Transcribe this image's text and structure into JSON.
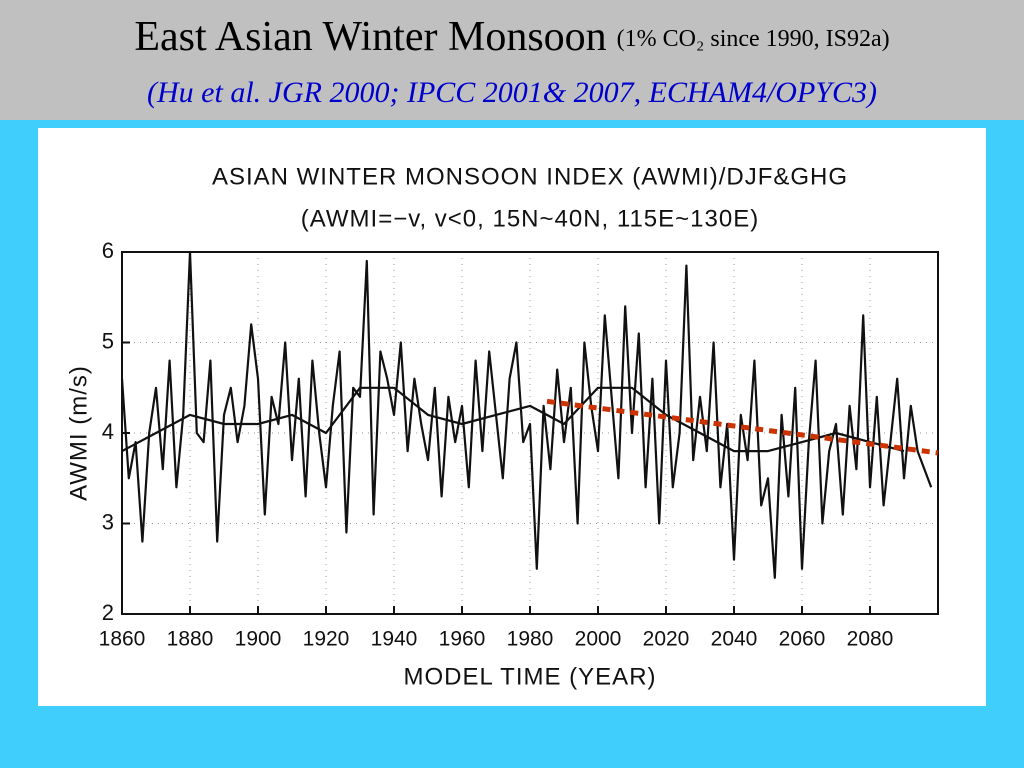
{
  "header": {
    "title": "East Asian Winter Monsoon",
    "title_note": "(1% CO₂ since 1990, IS92a)",
    "subtitle": "(Hu et al. JGR 2000; IPCC 2001& 2007, ECHAM4/OPYC3)"
  },
  "chart_data": {
    "type": "line",
    "title": "ASIAN WINTER MONSOON INDEX (AWMI)/DJF&GHG",
    "subtitle": "(AWMI=−v, v<0, 15N~40N, 115E~130E)",
    "x_label": "MODEL TIME (YEAR)",
    "y_label": "AWMI (m/s)",
    "xlim": [
      1860,
      2100
    ],
    "xticks": [
      1860,
      1880,
      1900,
      1920,
      1940,
      1960,
      1980,
      2000,
      2020,
      2040,
      2060,
      2080
    ],
    "ylim": [
      2,
      6
    ],
    "yticks": [
      2,
      3,
      4,
      5,
      6
    ],
    "grid": true,
    "series": [
      {
        "color": "#111111",
        "x": [
          1860,
          1862,
          1864,
          1866,
          1868,
          1870,
          1872,
          1874,
          1876,
          1878,
          1880,
          1882,
          1884,
          1886,
          1888,
          1890,
          1892,
          1894,
          1896,
          1898,
          1900,
          1902,
          1904,
          1906,
          1908,
          1910,
          1912,
          1914,
          1916,
          1918,
          1920,
          1922,
          1924,
          1926,
          1928,
          1930,
          1932,
          1934,
          1936,
          1938,
          1940,
          1942,
          1944,
          1946,
          1948,
          1950,
          1952,
          1954,
          1956,
          1958,
          1960,
          1962,
          1964,
          1966,
          1968,
          1970,
          1972,
          1974,
          1976,
          1978,
          1980,
          1982,
          1984,
          1986,
          1988,
          1990,
          1992,
          1994,
          1996,
          1998,
          2000,
          2002,
          2004,
          2006,
          2008,
          2010,
          2012,
          2014,
          2016,
          2018,
          2020,
          2022,
          2024,
          2026,
          2028,
          2030,
          2032,
          2034,
          2036,
          2038,
          2040,
          2042,
          2044,
          2046,
          2048,
          2050,
          2052,
          2054,
          2056,
          2058,
          2060,
          2062,
          2064,
          2066,
          2068,
          2070,
          2072,
          2074,
          2076,
          2078,
          2080,
          2082,
          2084,
          2086,
          2088,
          2090,
          2092,
          2094,
          2096,
          2098
        ],
        "values": [
          4.6,
          3.5,
          3.9,
          2.8,
          4.0,
          4.5,
          3.6,
          4.8,
          3.4,
          4.2,
          6.0,
          4.0,
          3.9,
          4.8,
          2.8,
          4.2,
          4.5,
          3.9,
          4.3,
          5.2,
          4.6,
          3.1,
          4.4,
          4.1,
          5.0,
          3.7,
          4.6,
          3.3,
          4.8,
          4.0,
          3.4,
          4.3,
          4.9,
          2.9,
          4.5,
          4.4,
          5.9,
          3.1,
          4.9,
          4.6,
          4.2,
          5.0,
          3.8,
          4.6,
          4.1,
          3.7,
          4.5,
          3.3,
          4.4,
          3.9,
          4.3,
          3.4,
          4.8,
          3.8,
          4.9,
          4.2,
          3.5,
          4.6,
          5.0,
          3.9,
          4.1,
          2.5,
          4.3,
          3.6,
          4.7,
          3.9,
          4.5,
          3.0,
          5.0,
          4.3,
          3.8,
          5.3,
          4.4,
          3.5,
          5.4,
          4.0,
          5.1,
          3.4,
          4.6,
          3.0,
          4.8,
          3.4,
          4.0,
          5.85,
          3.7,
          4.4,
          3.8,
          5.0,
          3.4,
          4.1,
          2.6,
          4.2,
          3.7,
          4.8,
          3.2,
          3.5,
          2.4,
          4.2,
          3.3,
          4.5,
          2.5,
          3.9,
          4.8,
          3.0,
          3.8,
          4.1,
          3.1,
          4.3,
          3.6,
          5.3,
          3.4,
          4.4,
          3.2,
          3.9,
          4.6,
          3.5,
          4.3,
          3.8,
          3.6,
          3.4
        ]
      },
      {
        "color": "#111111",
        "x": [
          1860,
          1870,
          1880,
          1890,
          1900,
          1910,
          1920,
          1930,
          1940,
          1950,
          1960,
          1970,
          1980,
          1990,
          2000,
          2010,
          2020,
          2030,
          2040,
          2050,
          2060,
          2070,
          2080,
          2090
        ],
        "values": [
          3.8,
          4.0,
          4.2,
          4.1,
          4.1,
          4.2,
          4.0,
          4.5,
          4.5,
          4.2,
          4.1,
          4.2,
          4.3,
          4.1,
          4.5,
          4.5,
          4.2,
          4.0,
          3.8,
          3.8,
          3.9,
          4.0,
          3.9,
          3.8
        ]
      },
      {
        "color": "#cc3300",
        "dashed": true,
        "x": [
          1985,
          2100
        ],
        "values": [
          4.35,
          3.78
        ]
      }
    ]
  }
}
